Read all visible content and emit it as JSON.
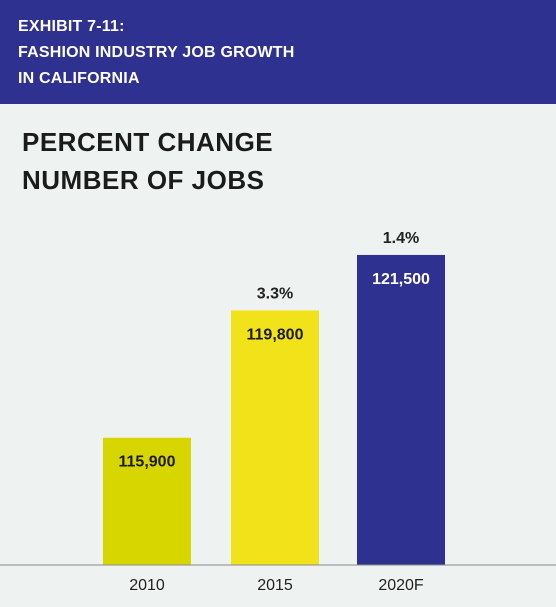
{
  "exhibit": {
    "lines": [
      "EXHIBIT 7-11:",
      "FASHION INDUSTRY JOB GROWTH",
      "IN CALIFORNIA"
    ]
  },
  "subtitle": {
    "lines": [
      "PERCENT CHANGE",
      "NUMBER OF JOBS"
    ]
  },
  "colors": {
    "header": "#2e3190",
    "background": "#eef3f1",
    "bar_2010": "#d8d600",
    "bar_2015": "#f2e21a",
    "bar_2020F": "#2e3190"
  },
  "chart_data": {
    "type": "bar",
    "categories": [
      "2010",
      "2015",
      "2020F"
    ],
    "values": [
      115900,
      119800,
      121500
    ],
    "value_labels": [
      "115,900",
      "119,800",
      "121,500"
    ],
    "percent_change_labels": [
      "",
      "3.3%",
      "1.4%"
    ],
    "ylim": [
      112000,
      123000
    ],
    "grid": false,
    "legend": "none"
  }
}
